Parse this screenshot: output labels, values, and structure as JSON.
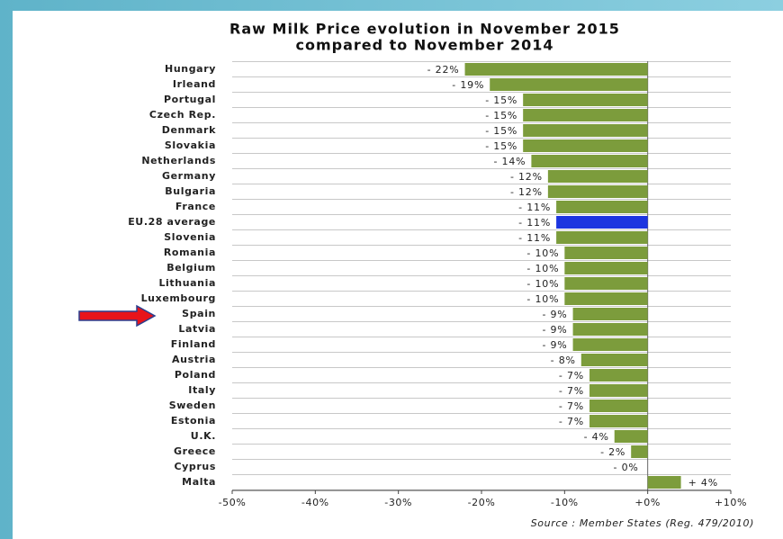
{
  "chart_data": {
    "type": "bar",
    "orientation": "horizontal",
    "title": "Raw Milk Price evolution in November 2015",
    "subtitle": "compared to November 2014",
    "categories": [
      "Hungary",
      "Irleand",
      "Portugal",
      "Czech Rep.",
      "Denmark",
      "Slovakia",
      "Netherlands",
      "Germany",
      "Bulgaria",
      "France",
      "EU.28 average",
      "Slovenia",
      "Romania",
      "Belgium",
      "Lithuania",
      "Luxembourg",
      "Spain",
      "Latvia",
      "Finland",
      "Austria",
      "Poland",
      "Italy",
      "Sweden",
      "Estonia",
      "U.K.",
      "Greece",
      "Cyprus",
      "Malta"
    ],
    "values": [
      -22,
      -19,
      -15,
      -15,
      -15,
      -15,
      -14,
      -12,
      -12,
      -11,
      -11,
      -11,
      -10,
      -10,
      -10,
      -10,
      -9,
      -9,
      -9,
      -8,
      -7,
      -7,
      -7,
      -7,
      -4,
      -2,
      0,
      4
    ],
    "value_labels": [
      "- 22%",
      "- 19%",
      "- 15%",
      "- 15%",
      "- 15%",
      "- 15%",
      "- 14%",
      "- 12%",
      "- 12%",
      "- 11%",
      "- 11%",
      "- 11%",
      "- 10%",
      "- 10%",
      "- 10%",
      "- 10%",
      "- 9%",
      "- 9%",
      "- 9%",
      "- 8%",
      "- 7%",
      "- 7%",
      "- 7%",
      "- 7%",
      "- 4%",
      "- 2%",
      "- 0%",
      "+ 4%"
    ],
    "color": "#7c9c3c",
    "highlight": {
      "category": "EU.28 average",
      "color": "#1c35e0"
    },
    "xlim": [
      -50,
      10
    ],
    "xticks": [
      {
        "value": -50,
        "label": "-50%"
      },
      {
        "value": -40,
        "label": "-40%"
      },
      {
        "value": -30,
        "label": "-30%"
      },
      {
        "value": -20,
        "label": "-20%"
      },
      {
        "value": -10,
        "label": "-10%"
      },
      {
        "value": 0,
        "label": "+0%"
      },
      {
        "value": 10,
        "label": "+10%"
      }
    ],
    "source": "Source : Member States (Reg. 479/2010)"
  }
}
